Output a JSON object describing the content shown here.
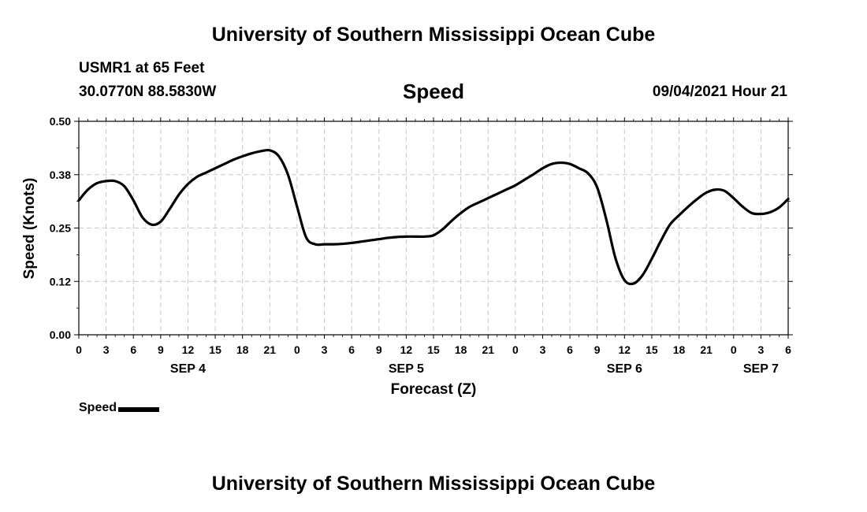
{
  "header": {
    "title_top": "University of Southern Mississippi Ocean Cube",
    "station": "USMR1 at 65 Feet",
    "coords": "30.0770N  88.5830W",
    "chart_title": "Speed",
    "datetime": "09/04/2021 Hour 21"
  },
  "footer": {
    "title_bottom": "University of Southern Mississippi Ocean Cube"
  },
  "legend": {
    "label": "Speed",
    "color": "#000000"
  },
  "chart_data": {
    "type": "line",
    "title": "Speed",
    "xlabel": "Forecast (Z)",
    "ylabel": "Speed (Knots)",
    "ylim": [
      0,
      0.5
    ],
    "xlim": [
      0,
      78
    ],
    "x_unit": "hours since SEP 4 00Z",
    "grid": true,
    "legend_position": "bottom-left",
    "y_ticks": [
      {
        "value": 0.0,
        "label": "0.00"
      },
      {
        "value": 0.125,
        "label": "0.12"
      },
      {
        "value": 0.25,
        "label": "0.25"
      },
      {
        "value": 0.375,
        "label": "0.38"
      },
      {
        "value": 0.5,
        "label": "0.50"
      }
    ],
    "x_ticks": [
      {
        "value": 0,
        "label": "0"
      },
      {
        "value": 3,
        "label": "3"
      },
      {
        "value": 6,
        "label": "6"
      },
      {
        "value": 9,
        "label": "9"
      },
      {
        "value": 12,
        "label": "12"
      },
      {
        "value": 15,
        "label": "15"
      },
      {
        "value": 18,
        "label": "18"
      },
      {
        "value": 21,
        "label": "21"
      },
      {
        "value": 24,
        "label": "0"
      },
      {
        "value": 27,
        "label": "3"
      },
      {
        "value": 30,
        "label": "6"
      },
      {
        "value": 33,
        "label": "9"
      },
      {
        "value": 36,
        "label": "12"
      },
      {
        "value": 39,
        "label": "15"
      },
      {
        "value": 42,
        "label": "18"
      },
      {
        "value": 45,
        "label": "21"
      },
      {
        "value": 48,
        "label": "0"
      },
      {
        "value": 51,
        "label": "3"
      },
      {
        "value": 54,
        "label": "6"
      },
      {
        "value": 57,
        "label": "9"
      },
      {
        "value": 60,
        "label": "12"
      },
      {
        "value": 63,
        "label": "15"
      },
      {
        "value": 66,
        "label": "18"
      },
      {
        "value": 69,
        "label": "21"
      },
      {
        "value": 72,
        "label": "0"
      },
      {
        "value": 75,
        "label": "3"
      },
      {
        "value": 78,
        "label": "6"
      }
    ],
    "day_labels": [
      {
        "value": 12,
        "label": "SEP 4"
      },
      {
        "value": 36,
        "label": "SEP 5"
      },
      {
        "value": 60,
        "label": "SEP 6"
      },
      {
        "value": 75,
        "label": "SEP 7"
      }
    ],
    "series": [
      {
        "name": "Speed",
        "x": [
          0,
          1,
          2,
          3,
          4,
          5,
          6,
          7,
          8,
          9,
          10,
          11,
          12,
          13,
          14,
          15,
          16,
          17,
          18,
          19,
          20,
          21,
          22,
          23,
          24,
          25,
          26,
          27,
          28,
          29,
          30,
          31,
          32,
          33,
          34,
          35,
          36,
          37,
          38,
          39,
          40,
          41,
          42,
          43,
          44,
          45,
          46,
          47,
          48,
          49,
          50,
          51,
          52,
          53,
          54,
          55,
          56,
          57,
          58,
          59,
          60,
          61,
          62,
          63,
          64,
          65,
          66,
          67,
          68,
          69,
          70,
          71,
          72,
          73,
          74,
          75,
          76,
          77,
          78
        ],
        "values": [
          0.315,
          0.34,
          0.355,
          0.36,
          0.36,
          0.348,
          0.315,
          0.275,
          0.258,
          0.265,
          0.295,
          0.328,
          0.353,
          0.37,
          0.38,
          0.39,
          0.4,
          0.41,
          0.418,
          0.425,
          0.43,
          0.432,
          0.418,
          0.375,
          0.3,
          0.228,
          0.212,
          0.212,
          0.212,
          0.213,
          0.215,
          0.218,
          0.221,
          0.224,
          0.227,
          0.229,
          0.23,
          0.23,
          0.23,
          0.233,
          0.247,
          0.267,
          0.285,
          0.3,
          0.31,
          0.32,
          0.33,
          0.34,
          0.35,
          0.363,
          0.376,
          0.39,
          0.4,
          0.403,
          0.4,
          0.39,
          0.378,
          0.345,
          0.27,
          0.18,
          0.128,
          0.12,
          0.14,
          0.178,
          0.22,
          0.258,
          0.28,
          0.3,
          0.318,
          0.333,
          0.34,
          0.337,
          0.32,
          0.3,
          0.285,
          0.283,
          0.287,
          0.298,
          0.318
        ]
      }
    ]
  }
}
